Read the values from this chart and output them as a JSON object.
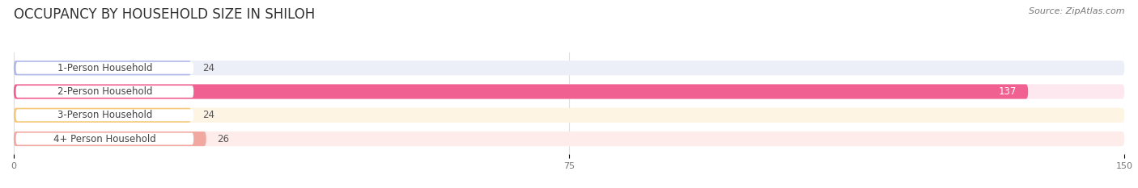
{
  "title": "OCCUPANCY BY HOUSEHOLD SIZE IN SHILOH",
  "source": "Source: ZipAtlas.com",
  "categories": [
    "1-Person Household",
    "2-Person Household",
    "3-Person Household",
    "4+ Person Household"
  ],
  "values": [
    24,
    137,
    24,
    26
  ],
  "bar_colors": [
    "#b0b8e8",
    "#f06090",
    "#f5c87a",
    "#f0a8a0"
  ],
  "bar_bg_colors": [
    "#eceef8",
    "#fde8f0",
    "#fef4e4",
    "#fdecea"
  ],
  "xlim": [
    0,
    150
  ],
  "xticks": [
    0,
    75,
    150
  ],
  "title_fontsize": 12,
  "label_fontsize": 8.5,
  "value_fontsize": 8.5,
  "source_fontsize": 8,
  "background_color": "#ffffff"
}
